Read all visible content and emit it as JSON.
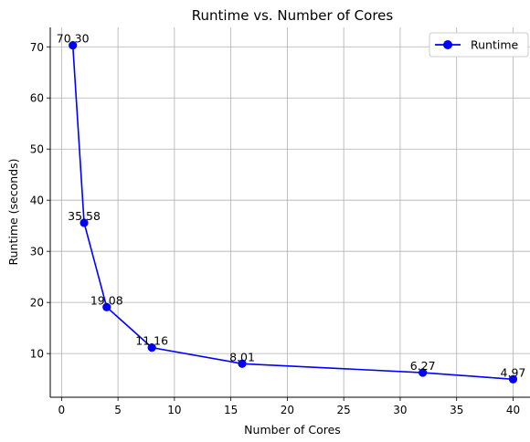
{
  "chart_data": {
    "type": "line",
    "title": "Runtime vs. Number of Cores",
    "xlabel": "Number of Cores",
    "ylabel": "Runtime (seconds)",
    "xlim": [
      -1,
      41.5
    ],
    "ylim": [
      1.45,
      73.8
    ],
    "xticks": [
      0,
      5,
      10,
      15,
      20,
      25,
      30,
      35,
      40
    ],
    "yticks": [
      10,
      20,
      30,
      40,
      50,
      60,
      70
    ],
    "grid": true,
    "legend_position": "top-right",
    "color": "#0000ff",
    "series": [
      {
        "name": "Runtime",
        "x": [
          1,
          2,
          4,
          8,
          16,
          32,
          40
        ],
        "y": [
          70.3,
          35.58,
          19.08,
          11.16,
          8.01,
          6.27,
          4.97
        ],
        "labels": [
          "70.30",
          "35.58",
          "19.08",
          "11.16",
          "8.01",
          "6.27",
          "4.97"
        ]
      }
    ]
  }
}
